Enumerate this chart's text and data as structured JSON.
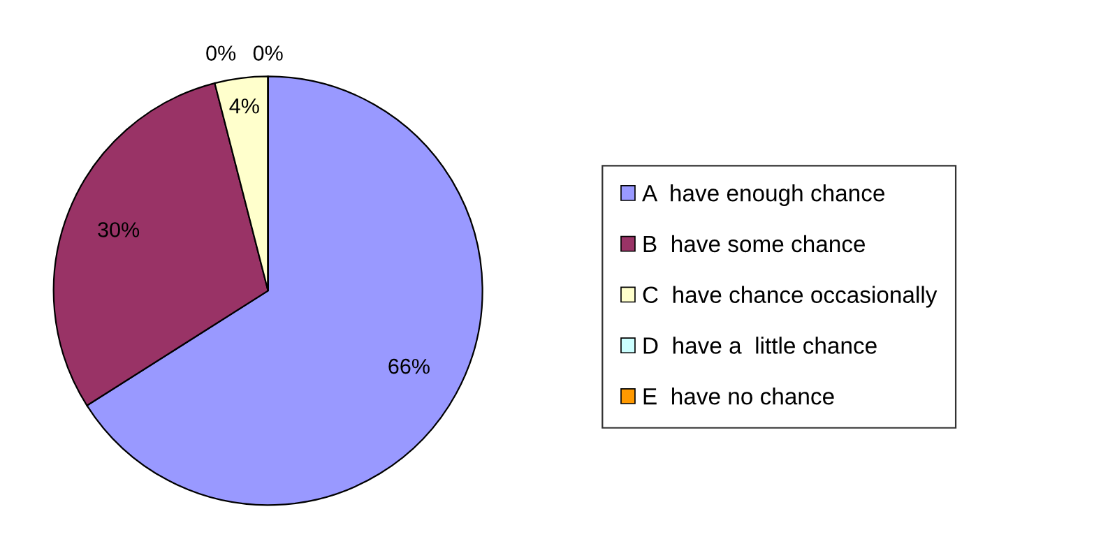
{
  "chart_data": {
    "type": "pie",
    "categories": [
      "A  have enough chance",
      "B  have some chance",
      "C  have chance occasionally",
      "D  have a  little chance",
      "E  have no chance"
    ],
    "values": [
      66,
      30,
      4,
      0,
      0
    ],
    "value_labels": [
      "66%",
      "30%",
      "4%",
      "0%",
      "0%"
    ],
    "colors": [
      "#9999ff",
      "#993366",
      "#ffffcc",
      "#ccffff",
      "#ff9900"
    ],
    "legend": "right"
  }
}
